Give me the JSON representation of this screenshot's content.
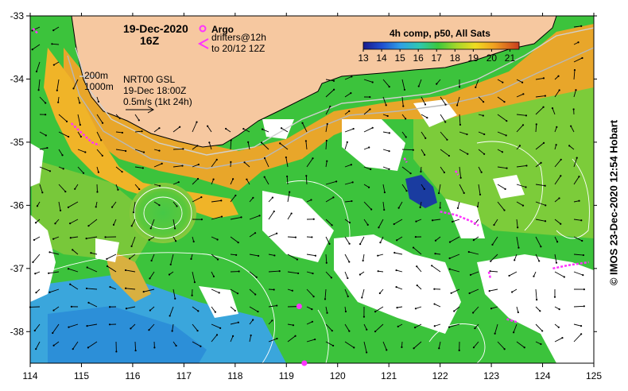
{
  "map": {
    "date_line1": "19-Dec-2020",
    "date_line2": "16Z",
    "legend_argo": "Argo",
    "legend_drifters_line1": "drifters@12h",
    "legend_drifters_line2": "to 20/12 12Z",
    "composite_label": "4h comp, p50, All Sats",
    "colorbar_ticks": [
      "13",
      "14",
      "15",
      "16",
      "17",
      "18",
      "19",
      "20",
      "21"
    ],
    "colorbar_range": [
      13,
      21.5
    ],
    "isobath_200": "200m",
    "isobath_1000": "1000m",
    "current_source": "NRT00 GSL",
    "current_time": "19-Dec 18:00Z",
    "current_scale": "0.5m/s (1kt 24h)",
    "credit": "© IMOS 23-Dec-2020 12:54 Hobart",
    "lon_ticks": [
      "114",
      "115",
      "116",
      "117",
      "118",
      "119",
      "120",
      "121",
      "122",
      "123",
      "124",
      "125"
    ],
    "lat_ticks": [
      "-33",
      "-34",
      "-35",
      "-36",
      "-37",
      "-38"
    ],
    "lon_range": [
      114,
      125
    ],
    "lat_range": [
      -38.5,
      -33
    ],
    "colors": {
      "land": "#f6c8a0",
      "cloud": "#ffffff",
      "argo": "#ff33ff",
      "drifter": "#ff33ff"
    },
    "argo_floats": [
      {
        "lon": 119.25,
        "lat": -37.6
      },
      {
        "lon": 119.35,
        "lat": -38.5
      }
    ],
    "drifter_tracks": [
      [
        [
          114.05,
          -33.2
        ],
        [
          114.15,
          -33.28
        ]
      ],
      [
        [
          114.8,
          -34.7
        ],
        [
          115.0,
          -34.85
        ],
        [
          115.2,
          -35.0
        ],
        [
          115.35,
          -35.05
        ]
      ],
      [
        [
          121.3,
          -35.25
        ],
        [
          121.35,
          -35.32
        ]
      ],
      [
        [
          122.0,
          -36.1
        ],
        [
          122.3,
          -36.15
        ],
        [
          122.6,
          -36.25
        ],
        [
          122.75,
          -36.32
        ]
      ],
      [
        [
          122.3,
          -35.45
        ],
        [
          122.35,
          -35.52
        ]
      ],
      [
        [
          124.2,
          -37.0
        ],
        [
          124.5,
          -36.95
        ],
        [
          124.9,
          -36.9
        ]
      ],
      [
        [
          123.3,
          -37.8
        ],
        [
          123.5,
          -37.85
        ]
      ],
      [
        [
          122.95,
          -37.05
        ],
        [
          122.98,
          -37.15
        ]
      ]
    ]
  }
}
